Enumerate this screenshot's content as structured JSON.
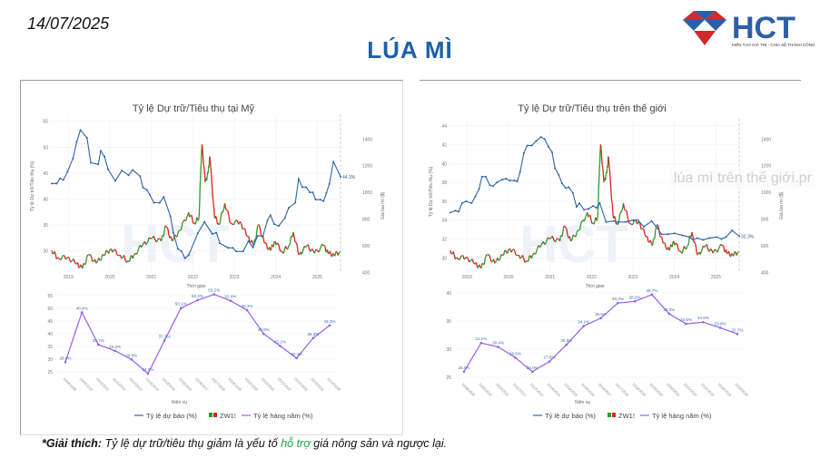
{
  "header": {
    "date": "14/07/2025",
    "title": "LÚA MÌ",
    "logo_text": "HCT",
    "logo_tagline": "KIẾN TẠO GIÁ TRỊ - CHIA SẺ THÀNH CÔNG"
  },
  "overlay_text": "lúa mì trên thế giới.pr",
  "note": {
    "prefix": "*Giải thích:",
    "text1": "Tỷ lệ dự trữ/tiêu thụ giảm là yếu tố",
    "highlight": "hỗ trợ",
    "text2": "giá nông sản và ngược lại."
  },
  "colors": {
    "forecast": "#2e63a6",
    "annual": "#9b5de5",
    "up": "#2a9d2a",
    "down": "#e0201c",
    "title": "#1f5fa9"
  },
  "legend": {
    "forecast": "Tỷ lệ dự báo (%)",
    "price": "ZW1!",
    "annual": "Tỷ lệ hàng năm (%)"
  },
  "chart_data": [
    {
      "type": "line",
      "panel": "us",
      "title": "Tỷ lệ Dự trữ/Tiêu thụ tại Mỹ",
      "xlabel": "Thời gian",
      "ylabel": "Tỷ lệ Dự trữ/Tiêu thụ (%)",
      "y2label": "Giá lúa mì ($)",
      "x_ticks": [
        "2019",
        "2020",
        "2021",
        "2022",
        "2023",
        "2024",
        "2025"
      ],
      "y_ticks": [
        30,
        35,
        40,
        45,
        50,
        55
      ],
      "y2_ticks": [
        400,
        600,
        800,
        1000,
        1200,
        1400
      ],
      "ylim": [
        30,
        55
      ],
      "y2lim": [
        400,
        1400
      ],
      "last_label": "44.3%",
      "forecast": [
        [
          2018.6,
          43
        ],
        [
          2018.72,
          43
        ],
        [
          2018.8,
          44
        ],
        [
          2018.88,
          43.7
        ],
        [
          2018.98,
          45.3
        ],
        [
          2019.11,
          47.8
        ],
        [
          2019.2,
          51
        ],
        [
          2019.29,
          53.3
        ],
        [
          2019.45,
          51.8
        ],
        [
          2019.54,
          47
        ],
        [
          2019.72,
          46.7
        ],
        [
          2019.78,
          49.3
        ],
        [
          2019.87,
          48.2
        ],
        [
          2019.96,
          45.7
        ],
        [
          2020.13,
          43.5
        ],
        [
          2020.29,
          45.5
        ],
        [
          2020.45,
          44.6
        ],
        [
          2020.55,
          45.6
        ],
        [
          2020.73,
          44.4
        ],
        [
          2020.8,
          42.2
        ],
        [
          2020.89,
          41.8
        ],
        [
          2020.96,
          40.9
        ],
        [
          2021.06,
          39.3
        ],
        [
          2021.2,
          39.3
        ],
        [
          2021.3,
          40.4
        ],
        [
          2021.46,
          36.7
        ],
        [
          2021.53,
          33.5
        ],
        [
          2021.64,
          30.4
        ],
        [
          2021.72,
          30
        ],
        [
          2021.81,
          28.6
        ],
        [
          2021.9,
          29.2
        ],
        [
          2022.12,
          33.4
        ],
        [
          2022.28,
          35.6
        ],
        [
          2022.47,
          33.3
        ],
        [
          2022.57,
          33.5
        ],
        [
          2022.65,
          31.5
        ],
        [
          2022.85,
          30.6
        ],
        [
          2022.96,
          30.6
        ],
        [
          2023.05,
          29.9
        ],
        [
          2023.21,
          29.9
        ],
        [
          2023.34,
          31.9
        ],
        [
          2023.45,
          30.7
        ],
        [
          2023.56,
          32.9
        ],
        [
          2023.69,
          32.9
        ],
        [
          2023.8,
          35.9
        ],
        [
          2023.87,
          36.9
        ],
        [
          2023.96,
          35.2
        ],
        [
          2024.07,
          34.8
        ],
        [
          2024.22,
          36.4
        ],
        [
          2024.31,
          38.3
        ],
        [
          2024.47,
          39.3
        ],
        [
          2024.55,
          43.9
        ],
        [
          2024.64,
          42.3
        ],
        [
          2024.73,
          42.3
        ],
        [
          2024.82,
          41.3
        ],
        [
          2024.89,
          41.3
        ],
        [
          2024.96,
          39.9
        ],
        [
          2025.07,
          39.9
        ],
        [
          2025.15,
          39.6
        ],
        [
          2025.22,
          41.2
        ],
        [
          2025.29,
          42.9
        ],
        [
          2025.39,
          47.2
        ],
        [
          2025.56,
          44.3
        ]
      ],
      "annual": {
        "seasons": [
          "2008/2009",
          "2009/2010",
          "2010/2011",
          "2011/2012",
          "2012/2013",
          "2013/2014",
          "2014/2015",
          "2015/2016",
          "2016/2017",
          "2017/2018",
          "2018/2019",
          "2019/2020",
          "2020/2021",
          "2021/2022",
          "2022/2023",
          "2023/2024",
          "2024/2025"
        ],
        "values": [
          28.8,
          48.4,
          35.7,
          33.3,
          29.9,
          24.3,
          37.3,
          50.1,
          53.2,
          55.5,
          53.0,
          49.3,
          40.0,
          35.2,
          30.4,
          38.3,
          43.3
        ],
        "ylim": [
          25,
          55
        ],
        "y_ticks": [
          25,
          30,
          35,
          40,
          45,
          50,
          55
        ],
        "xlabel": "Niên vụ"
      }
    },
    {
      "type": "line",
      "panel": "world",
      "title": "Tỷ lệ Dự trữ/Tiêu thụ trên thế giới",
      "xlabel": "Thời gian",
      "ylabel": "Tỷ lệ Dự trữ/Tiêu thụ (%)",
      "y2label": "Giá lúa mì ($)",
      "x_ticks": [
        "2019",
        "2020",
        "2021",
        "2022",
        "2023",
        "2024",
        "2025"
      ],
      "y_ticks": [
        30,
        32,
        34,
        36,
        38,
        40,
        42,
        44
      ],
      "y2_ticks": [
        400,
        600,
        800,
        1000,
        1200,
        1400
      ],
      "ylim": [
        30,
        44
      ],
      "y2lim": [
        400,
        1400
      ],
      "last_label": "32.3%",
      "forecast": [
        [
          2018.6,
          34.8
        ],
        [
          2018.72,
          35
        ],
        [
          2018.8,
          34.9
        ],
        [
          2018.88,
          35.8
        ],
        [
          2018.98,
          36
        ],
        [
          2019.11,
          35.8
        ],
        [
          2019.2,
          36.5
        ],
        [
          2019.29,
          37.3
        ],
        [
          2019.36,
          38.6
        ],
        [
          2019.45,
          38.6
        ],
        [
          2019.55,
          37.7
        ],
        [
          2019.63,
          37.6
        ],
        [
          2019.72,
          38
        ],
        [
          2019.85,
          38.3
        ],
        [
          2019.94,
          38.4
        ],
        [
          2020.03,
          38.2
        ],
        [
          2020.14,
          38.2
        ],
        [
          2020.21,
          38.1
        ],
        [
          2020.28,
          39.1
        ],
        [
          2020.37,
          41.1
        ],
        [
          2020.45,
          41.9
        ],
        [
          2020.56,
          41.9
        ],
        [
          2020.67,
          42.4
        ],
        [
          2020.78,
          42.8
        ],
        [
          2020.87,
          42.6
        ],
        [
          2020.96,
          41.8
        ],
        [
          2021.05,
          41.2
        ],
        [
          2021.12,
          39.5
        ],
        [
          2021.21,
          38.8
        ],
        [
          2021.29,
          37.9
        ],
        [
          2021.38,
          37.4
        ],
        [
          2021.45,
          37.5
        ],
        [
          2021.55,
          36.9
        ],
        [
          2021.64,
          35.4
        ],
        [
          2021.71,
          35.8
        ],
        [
          2021.82,
          35.1
        ],
        [
          2021.93,
          35.2
        ],
        [
          2022.04,
          35.5
        ],
        [
          2022.12,
          35.3
        ],
        [
          2022.2,
          35.8
        ],
        [
          2022.35,
          33.8
        ],
        [
          2022.53,
          33.9
        ],
        [
          2022.64,
          33.8
        ],
        [
          2022.82,
          33.8
        ],
        [
          2023.01,
          34
        ],
        [
          2023.12,
          34
        ],
        [
          2023.26,
          33.3
        ],
        [
          2023.45,
          33.9
        ],
        [
          2023.56,
          33.3
        ],
        [
          2023.69,
          32.5
        ],
        [
          2023.85,
          32.5
        ],
        [
          2024,
          32.6
        ],
        [
          2024.18,
          32.4
        ],
        [
          2024.36,
          32.2
        ],
        [
          2024.45,
          31.9
        ],
        [
          2024.55,
          32.1
        ],
        [
          2024.69,
          31.9
        ],
        [
          2024.84,
          32.1
        ],
        [
          2025.02,
          32.2
        ],
        [
          2025.13,
          32
        ],
        [
          2025.24,
          32.2
        ],
        [
          2025.39,
          32.9
        ],
        [
          2025.56,
          32.3
        ]
      ],
      "annual": {
        "seasons": [
          "2008/2009",
          "2009/2010",
          "2010/2011",
          "2011/2012",
          "2012/2013",
          "2013/2014",
          "2014/2015",
          "2015/2016",
          "2016/2017",
          "2017/2018",
          "2018/2019",
          "2019/2020",
          "2020/2021",
          "2021/2022",
          "2022/2023",
          "2023/2024",
          "2024/2025"
        ],
        "values": [
          26.0,
          31.1,
          30.4,
          28.5,
          26.0,
          27.8,
          30.8,
          34.1,
          35.5,
          38.2,
          38.5,
          39.7,
          36.3,
          34.5,
          34.8,
          33.8,
          32.7
        ],
        "ylim": [
          25,
          40
        ],
        "y_ticks": [
          25,
          30,
          35,
          40
        ],
        "xlabel": "Niên vụ"
      }
    }
  ],
  "price_series": [
    [
      2018.6,
      565
    ],
    [
      2018.74,
      510
    ],
    [
      2018.98,
      513
    ],
    [
      2019.2,
      463
    ],
    [
      2019.34,
      430
    ],
    [
      2019.49,
      530
    ],
    [
      2019.67,
      468
    ],
    [
      2019.85,
      530
    ],
    [
      2020.03,
      577
    ],
    [
      2020.25,
      530
    ],
    [
      2020.43,
      486
    ],
    [
      2020.58,
      530
    ],
    [
      2020.8,
      611
    ],
    [
      2021.02,
      656
    ],
    [
      2021.24,
      634
    ],
    [
      2021.35,
      747
    ],
    [
      2021.5,
      634
    ],
    [
      2021.68,
      713
    ],
    [
      2021.9,
      849
    ],
    [
      2022.04,
      770
    ],
    [
      2022.15,
      815
    ],
    [
      2022.19,
      1166
    ],
    [
      2022.22,
      1359
    ],
    [
      2022.3,
      1076
    ],
    [
      2022.37,
      1144
    ],
    [
      2022.41,
      1268
    ],
    [
      2022.52,
      826
    ],
    [
      2022.63,
      758
    ],
    [
      2022.77,
      917
    ],
    [
      2022.92,
      770
    ],
    [
      2023.14,
      781
    ],
    [
      2023.32,
      668
    ],
    [
      2023.47,
      600
    ],
    [
      2023.58,
      758
    ],
    [
      2023.72,
      622
    ],
    [
      2023.87,
      565
    ],
    [
      2023.98,
      634
    ],
    [
      2024.16,
      554
    ],
    [
      2024.31,
      600
    ],
    [
      2024.42,
      702
    ],
    [
      2024.56,
      531
    ],
    [
      2024.75,
      600
    ],
    [
      2024.93,
      543
    ],
    [
      2025.15,
      600
    ],
    [
      2025.26,
      543
    ],
    [
      2025.4,
      531
    ],
    [
      2025.55,
      554
    ]
  ]
}
